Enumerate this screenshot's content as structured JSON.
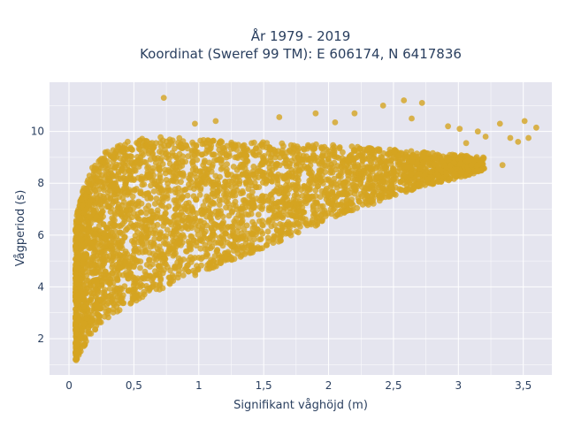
{
  "chart_data": {
    "type": "scatter",
    "title_line1": "År 1979 - 2019",
    "title_line2": "Koordinat (Sweref 99 TM): E 606174, N 6417836",
    "xlabel": "Signifikant våghöjd (m)",
    "ylabel": "Vågperiod (s)",
    "xlim": [
      -0.15,
      3.72
    ],
    "ylim": [
      0.6,
      11.9
    ],
    "xticks": [
      0,
      0.5,
      1,
      1.5,
      2,
      2.5,
      3,
      3.5
    ],
    "xtick_labels": [
      "0",
      "0,5",
      "1",
      "1,5",
      "2",
      "2,5",
      "3",
      "3,5"
    ],
    "yticks": [
      2,
      4,
      6,
      8,
      10
    ],
    "ytick_labels": [
      "2",
      "4",
      "6",
      "8",
      "10"
    ],
    "grid": true,
    "legend": "none",
    "marker_color": "#d4a420",
    "plot_background": "#e5e5ef",
    "envelope": {
      "x": [
        0.05,
        0.1,
        0.2,
        0.3,
        0.5,
        0.75,
        1.0,
        1.25,
        1.5,
        1.75,
        2.0,
        2.25,
        2.5,
        2.75,
        3.0,
        3.2
      ],
      "y_min": [
        1.1,
        1.6,
        2.3,
        2.8,
        3.4,
        4.0,
        4.5,
        5.0,
        5.5,
        6.0,
        6.6,
        7.0,
        7.5,
        7.9,
        8.2,
        8.5
      ],
      "y_max": [
        6.5,
        7.8,
        8.7,
        9.3,
        9.7,
        9.8,
        9.7,
        9.6,
        9.6,
        9.5,
        9.5,
        9.4,
        9.3,
        9.2,
        9.1,
        9.0
      ]
    },
    "outliers": [
      {
        "x": 0.73,
        "y": 11.3
      },
      {
        "x": 2.42,
        "y": 11.0
      },
      {
        "x": 2.58,
        "y": 11.2
      },
      {
        "x": 2.72,
        "y": 11.1
      },
      {
        "x": 3.51,
        "y": 10.4
      },
      {
        "x": 3.6,
        "y": 10.15
      },
      {
        "x": 3.32,
        "y": 10.3
      },
      {
        "x": 3.46,
        "y": 9.6
      },
      {
        "x": 3.4,
        "y": 9.75
      },
      {
        "x": 3.54,
        "y": 9.75
      },
      {
        "x": 3.34,
        "y": 8.7
      },
      {
        "x": 3.06,
        "y": 9.55
      },
      {
        "x": 1.13,
        "y": 10.4
      },
      {
        "x": 0.97,
        "y": 10.3
      },
      {
        "x": 1.62,
        "y": 10.55
      },
      {
        "x": 1.9,
        "y": 10.7
      },
      {
        "x": 2.05,
        "y": 10.35
      },
      {
        "x": 2.2,
        "y": 10.7
      },
      {
        "x": 2.64,
        "y": 10.5
      },
      {
        "x": 2.92,
        "y": 10.2
      },
      {
        "x": 3.01,
        "y": 10.1
      },
      {
        "x": 3.15,
        "y": 10.0
      },
      {
        "x": 3.21,
        "y": 9.8
      },
      {
        "x": 3.08,
        "y": 8.9
      },
      {
        "x": 3.17,
        "y": 8.8
      },
      {
        "x": 0.24,
        "y": 8.9
      },
      {
        "x": 0.28,
        "y": 9.2
      },
      {
        "x": 0.18,
        "y": 8.6
      }
    ]
  }
}
